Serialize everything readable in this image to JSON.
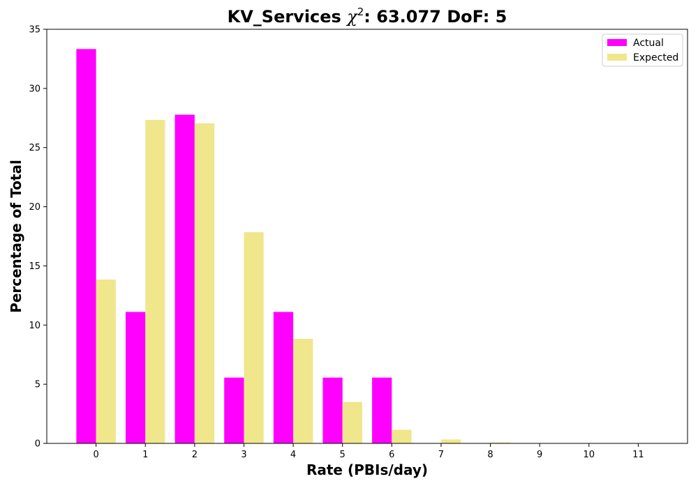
{
  "chart_data": {
    "type": "bar",
    "title_prefix": "KV_Services ",
    "title_chi": "χ",
    "title_sup": "2",
    "title_suffix": ": 63.077 DoF: 5",
    "xlabel": "Rate (PBIs/day)",
    "ylabel": "Percentage of Total",
    "categories": [
      "0",
      "1",
      "2",
      "3",
      "4",
      "5",
      "6",
      "7",
      "8",
      "9",
      "10",
      "11"
    ],
    "ylim": [
      0,
      35
    ],
    "yticks": [
      0,
      5,
      10,
      15,
      20,
      25,
      30,
      35
    ],
    "grid": false,
    "legend_position": "top-right",
    "series": [
      {
        "name": "Actual",
        "color": "#ff00ff",
        "values": [
          33.33,
          11.11,
          27.78,
          5.56,
          11.11,
          5.56,
          5.56,
          0,
          0,
          0,
          0,
          0
        ]
      },
      {
        "name": "Expected",
        "color": "#f0e68c",
        "values": [
          13.85,
          27.34,
          27.05,
          17.85,
          8.84,
          3.5,
          1.15,
          0.33,
          0.08,
          0.02,
          0.0,
          0.0
        ]
      }
    ]
  }
}
